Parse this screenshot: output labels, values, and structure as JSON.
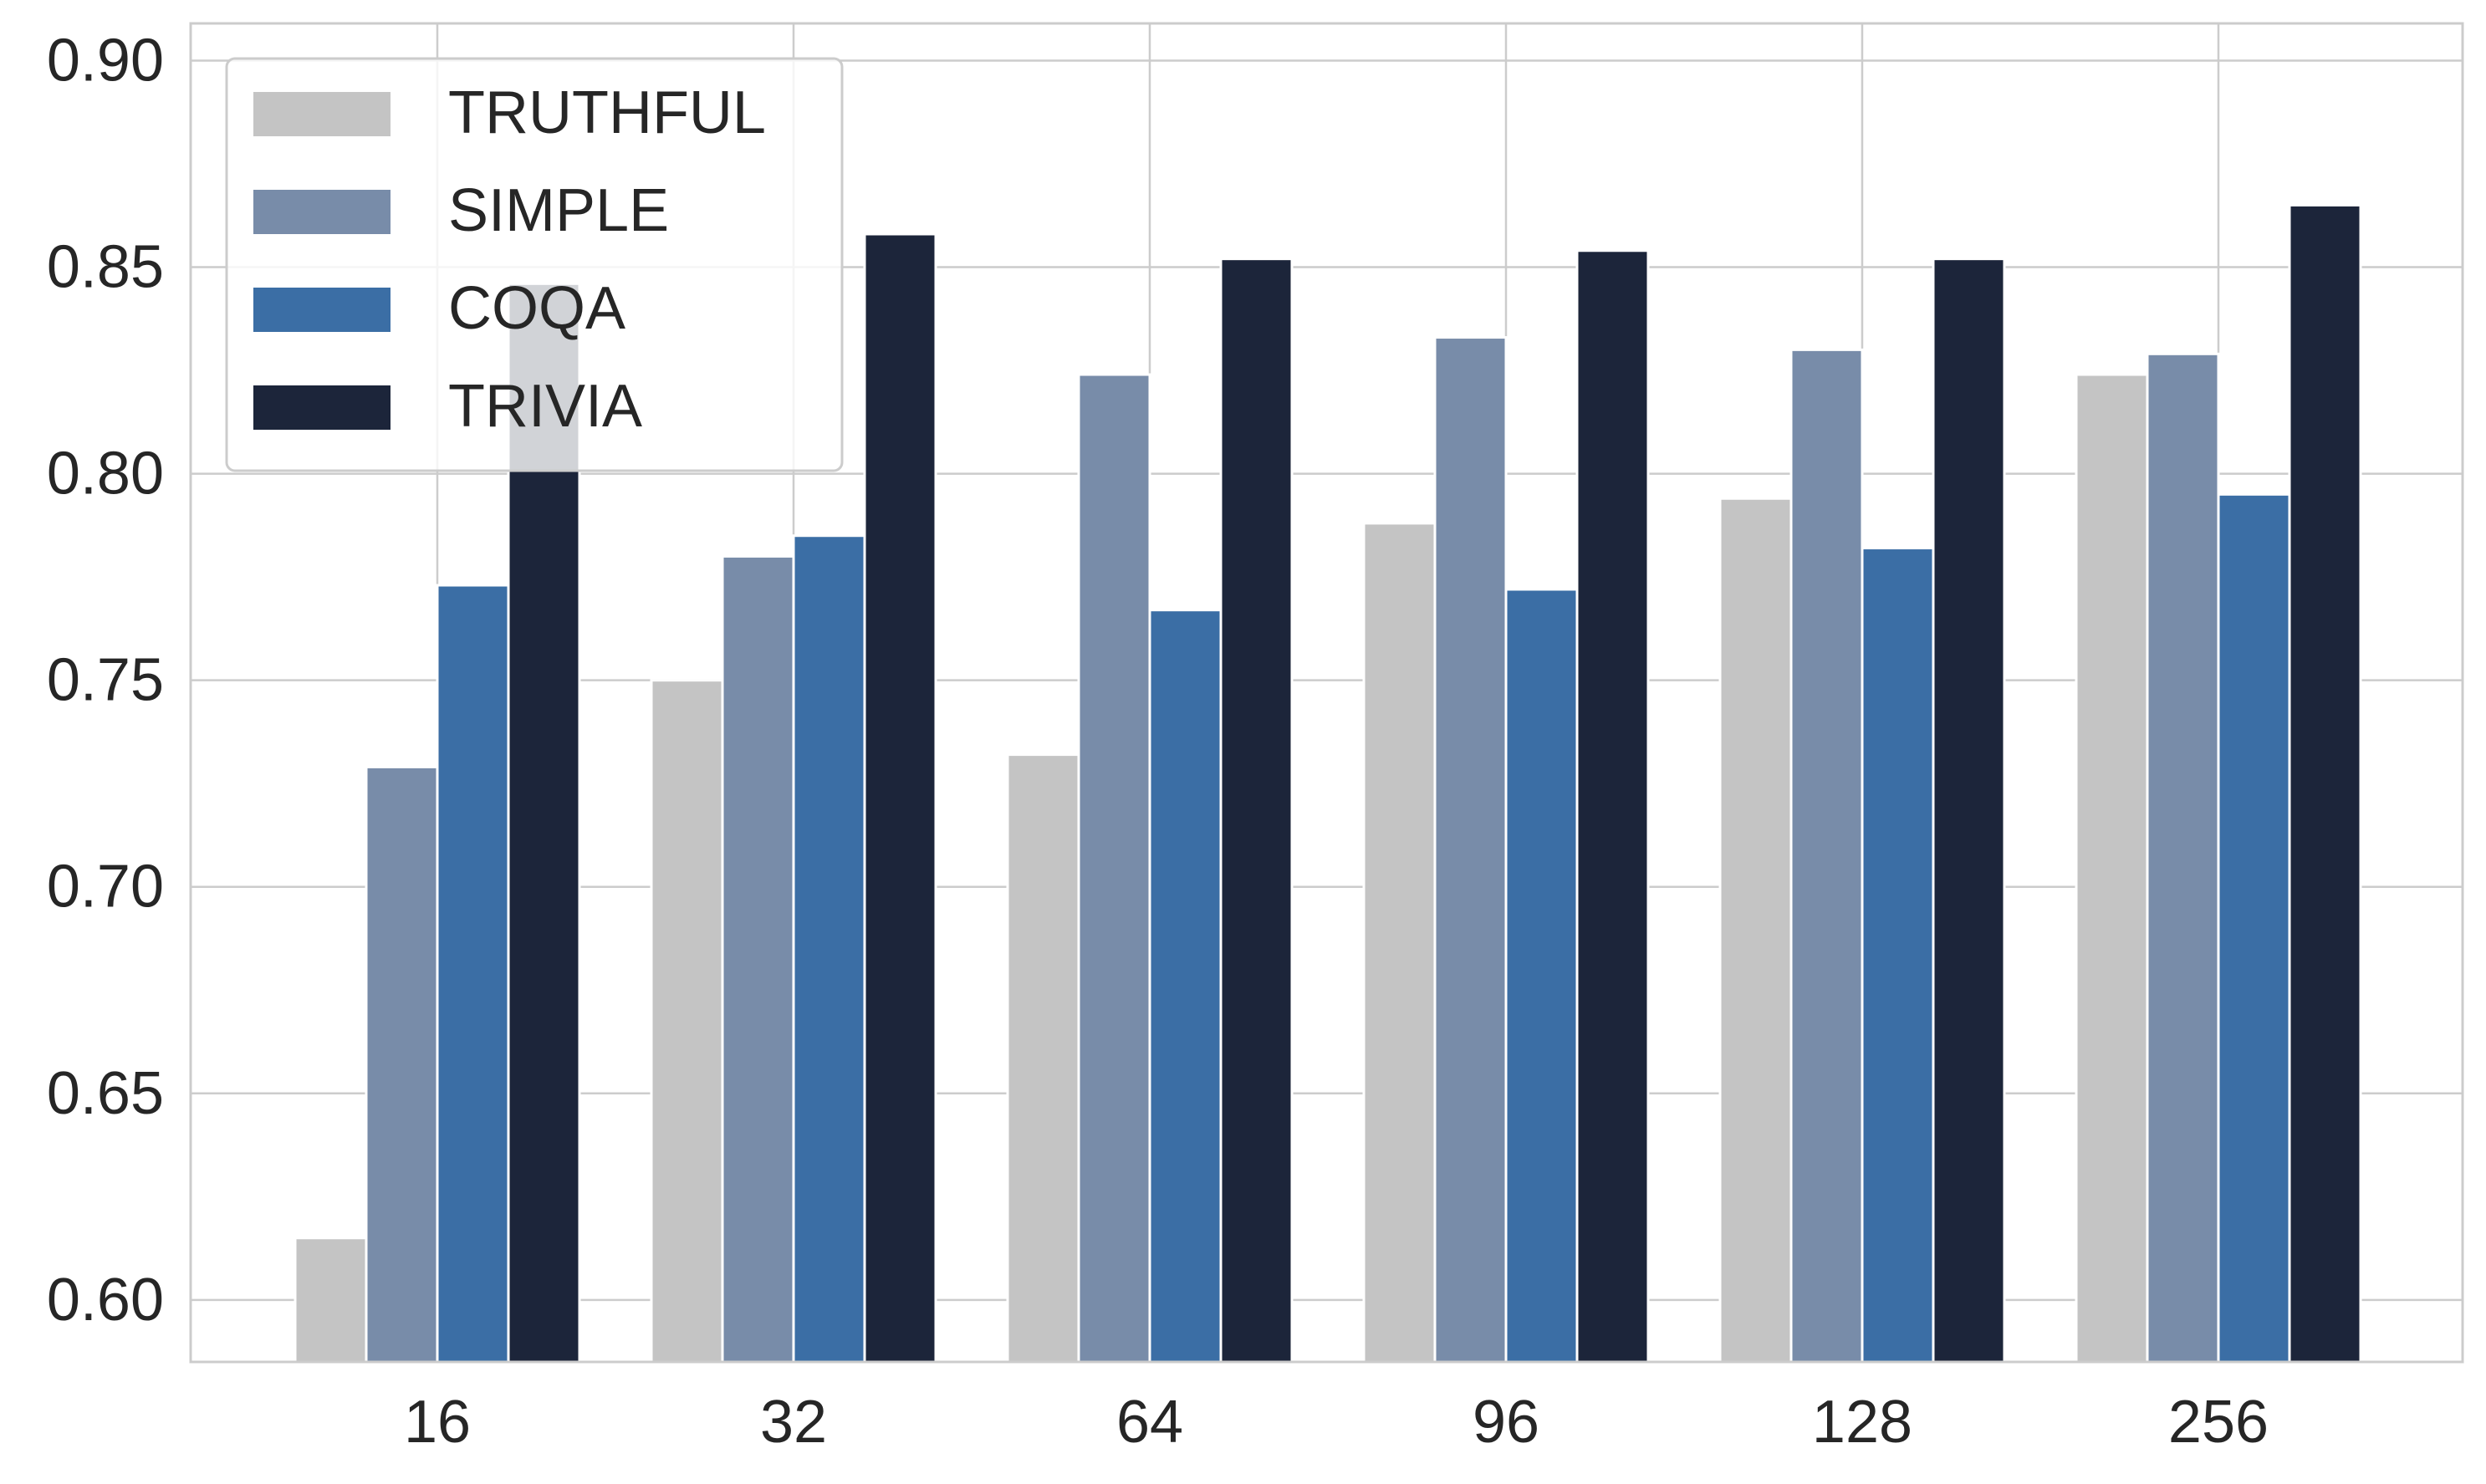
{
  "chart_data": {
    "type": "bar",
    "title": "",
    "xlabel": "",
    "ylabel": "",
    "categories": [
      "16",
      "32",
      "64",
      "96",
      "128",
      "256"
    ],
    "ylim": [
      0.585,
      0.909
    ],
    "yticks": [
      "0.60",
      "0.65",
      "0.70",
      "0.75",
      "0.80",
      "0.85",
      "0.90"
    ],
    "ytick_values": [
      0.6,
      0.65,
      0.7,
      0.75,
      0.8,
      0.85,
      0.9
    ],
    "grid": true,
    "legend_position": "top-left",
    "series": [
      {
        "name": "TRUTHFUL",
        "color": "#c4c4c4",
        "values": [
          0.615,
          0.75,
          0.732,
          0.788,
          0.794,
          0.824
        ]
      },
      {
        "name": "SIMPLE",
        "color": "#788ca9",
        "values": [
          0.729,
          0.78,
          0.824,
          0.833,
          0.83,
          0.829
        ]
      },
      {
        "name": "COQA",
        "color": "#3b6ea5",
        "values": [
          0.773,
          0.785,
          0.767,
          0.772,
          0.782,
          0.795
        ]
      },
      {
        "name": "TRIVIA",
        "color": "#1c253a",
        "values": [
          0.846,
          0.858,
          0.852,
          0.854,
          0.852,
          0.865
        ]
      }
    ]
  }
}
